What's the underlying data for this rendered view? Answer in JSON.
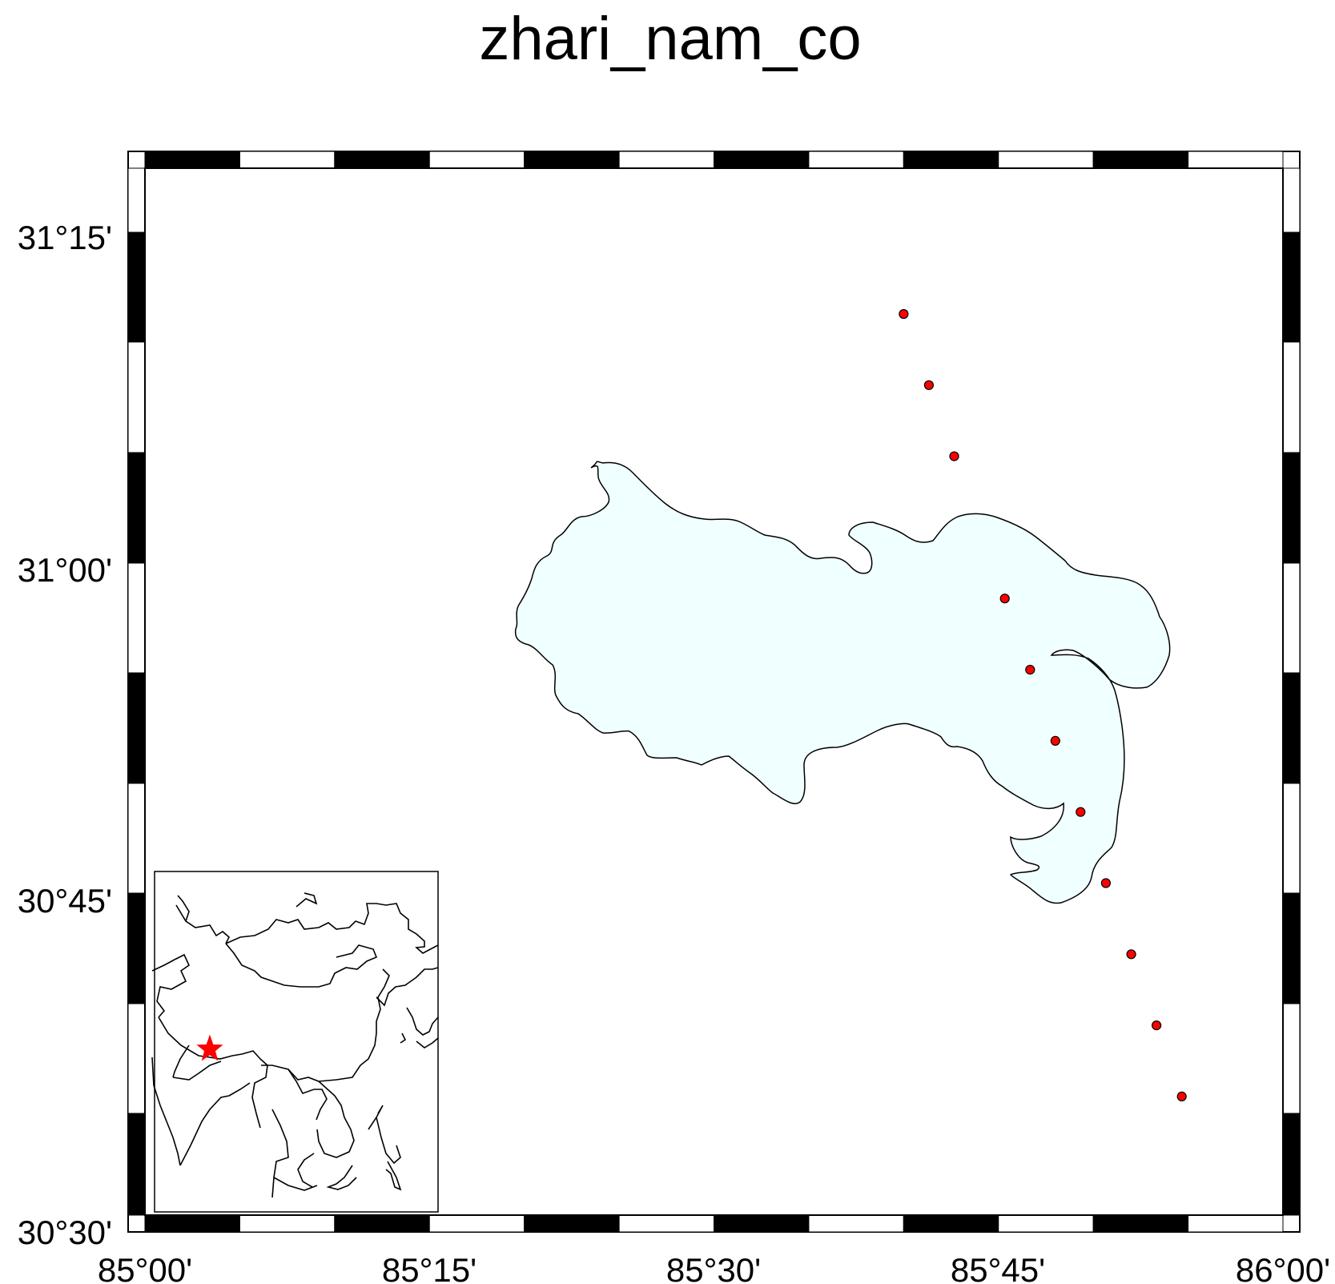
{
  "title": "zhari_nam_co",
  "axes": {
    "x_labels": [
      "85°00'",
      "85°15'",
      "85°30'",
      "85°45'",
      "86°00'"
    ],
    "y_labels": [
      "31°15'",
      "31°00'",
      "30°45'",
      "30°30'"
    ]
  },
  "map": {
    "lon_range": [
      85.0,
      86.0
    ],
    "lat_range": [
      30.5,
      31.3333
    ],
    "lake_color": "#f0ffff",
    "point_color": "#ff0000",
    "points": [
      {
        "lon": 85.6667,
        "lat": 31.2917
      },
      {
        "lon": 85.6889,
        "lat": 31.2292
      },
      {
        "lon": 85.7111,
        "lat": 31.1667
      },
      {
        "lon": 85.7556,
        "lat": 31.0417
      },
      {
        "lon": 85.7778,
        "lat": 30.9792
      },
      {
        "lon": 85.8,
        "lat": 30.9167
      },
      {
        "lon": 85.8222,
        "lat": 30.8542
      },
      {
        "lon": 85.8444,
        "lat": 30.7917
      },
      {
        "lon": 85.8667,
        "lat": 30.7292
      },
      {
        "lon": 85.8889,
        "lat": 30.6667
      },
      {
        "lon": 85.9111,
        "lat": 30.6042
      }
    ]
  },
  "inset": {
    "marker_color": "#ff0000"
  }
}
